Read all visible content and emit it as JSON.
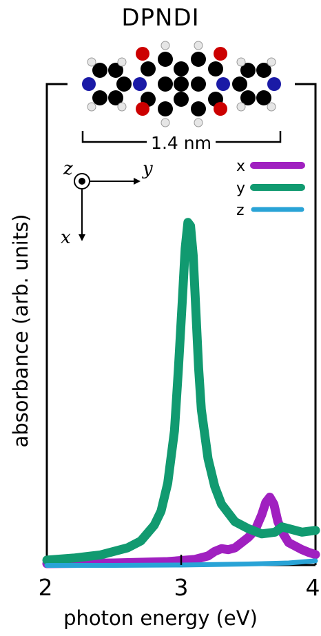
{
  "molecule": {
    "name": "DPNDI",
    "scale_label": "1.4 nm",
    "atom_colors": {
      "carbon": "#000000",
      "hydrogen": "#e6e6e6",
      "nitrogen": "#1a1aa6",
      "oxygen": "#cc0000"
    }
  },
  "axes_glyph": {
    "z": "z",
    "y": "y",
    "x": "x"
  },
  "chart_data": {
    "type": "line",
    "xlabel": "photon energy (eV)",
    "ylabel": "absorbance (arb. units)",
    "xlim": [
      2,
      4
    ],
    "ylim": [
      0,
      1.0
    ],
    "xticks": [
      "2",
      "3",
      "4"
    ],
    "grid": false,
    "legend_position": "top-right",
    "series": [
      {
        "name": "x",
        "color": "#a020c0",
        "points": [
          [
            2.0,
            0.0
          ],
          [
            2.5,
            0.002
          ],
          [
            2.9,
            0.006
          ],
          [
            3.1,
            0.012
          ],
          [
            3.2,
            0.022
          ],
          [
            3.25,
            0.035
          ],
          [
            3.3,
            0.043
          ],
          [
            3.35,
            0.04
          ],
          [
            3.4,
            0.045
          ],
          [
            3.45,
            0.06
          ],
          [
            3.5,
            0.075
          ],
          [
            3.55,
            0.095
          ],
          [
            3.6,
            0.14
          ],
          [
            3.63,
            0.175
          ],
          [
            3.66,
            0.19
          ],
          [
            3.69,
            0.17
          ],
          [
            3.72,
            0.12
          ],
          [
            3.76,
            0.085
          ],
          [
            3.8,
            0.06
          ],
          [
            3.85,
            0.05
          ],
          [
            3.9,
            0.04
          ],
          [
            3.95,
            0.032
          ],
          [
            4.0,
            0.026
          ]
        ]
      },
      {
        "name": "y",
        "color": "#119a70",
        "points": [
          [
            2.0,
            0.01
          ],
          [
            2.2,
            0.016
          ],
          [
            2.4,
            0.025
          ],
          [
            2.6,
            0.045
          ],
          [
            2.7,
            0.065
          ],
          [
            2.8,
            0.11
          ],
          [
            2.85,
            0.15
          ],
          [
            2.9,
            0.23
          ],
          [
            2.95,
            0.38
          ],
          [
            2.98,
            0.56
          ],
          [
            3.01,
            0.76
          ],
          [
            3.03,
            0.9
          ],
          [
            3.05,
            0.975
          ],
          [
            3.07,
            0.965
          ],
          [
            3.09,
            0.88
          ],
          [
            3.11,
            0.72
          ],
          [
            3.13,
            0.56
          ],
          [
            3.15,
            0.44
          ],
          [
            3.2,
            0.3
          ],
          [
            3.25,
            0.22
          ],
          [
            3.3,
            0.17
          ],
          [
            3.4,
            0.12
          ],
          [
            3.5,
            0.1
          ],
          [
            3.6,
            0.085
          ],
          [
            3.7,
            0.09
          ],
          [
            3.75,
            0.105
          ],
          [
            3.8,
            0.1
          ],
          [
            3.9,
            0.09
          ],
          [
            4.0,
            0.095
          ]
        ]
      },
      {
        "name": "z",
        "color": "#29a3d6",
        "points": [
          [
            2.0,
            -0.005
          ],
          [
            2.5,
            -0.005
          ],
          [
            3.0,
            -0.004
          ],
          [
            3.5,
            -0.001
          ],
          [
            3.8,
            0.002
          ],
          [
            4.0,
            0.008
          ]
        ]
      }
    ]
  }
}
